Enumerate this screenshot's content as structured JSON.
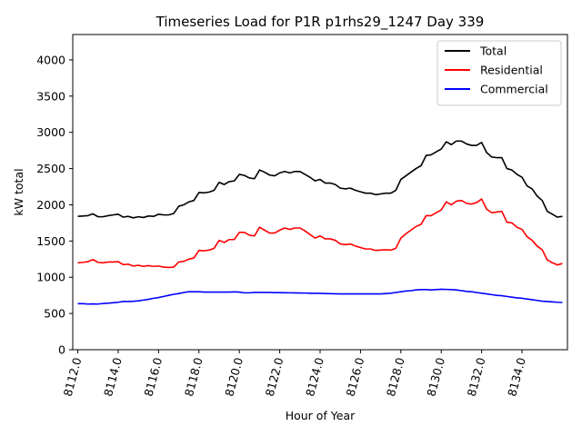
{
  "chart_data": {
    "type": "line",
    "title": "Timeseries Load for P1R p1rhs29_1247  Day 339",
    "xlabel": "Hour of Year",
    "ylabel": "kW total",
    "xlim": [
      8111.75,
      8136.25
    ],
    "ylim": [
      0,
      4350
    ],
    "x_ticks": [
      8112,
      8114,
      8116,
      8118,
      8120,
      8122,
      8124,
      8126,
      8128,
      8130,
      8132,
      8134
    ],
    "x_tick_labels": [
      "8112.0",
      "8114.0",
      "8116.0",
      "8118.0",
      "8120.0",
      "8122.0",
      "8124.0",
      "8126.0",
      "8128.0",
      "8130.0",
      "8132.0",
      "8134.0"
    ],
    "y_ticks": [
      0,
      500,
      1000,
      1500,
      2000,
      2500,
      3000,
      3500,
      4000
    ],
    "y_tick_labels": [
      "0",
      "500",
      "1000",
      "1500",
      "2000",
      "2500",
      "3000",
      "3500",
      "4000"
    ],
    "legend_position": "top-right",
    "x_start": 8112,
    "x_step": 0.25,
    "series": [
      {
        "name": "Total",
        "color": "#000000",
        "values": [
          1840,
          1845,
          1850,
          1875,
          1835,
          1835,
          1850,
          1860,
          1870,
          1830,
          1840,
          1820,
          1835,
          1825,
          1845,
          1840,
          1870,
          1860,
          1860,
          1880,
          1980,
          2000,
          2040,
          2060,
          2170,
          2165,
          2175,
          2200,
          2310,
          2280,
          2320,
          2330,
          2420,
          2405,
          2370,
          2360,
          2480,
          2450,
          2410,
          2400,
          2440,
          2460,
          2440,
          2460,
          2460,
          2420,
          2380,
          2330,
          2350,
          2300,
          2300,
          2280,
          2230,
          2220,
          2230,
          2200,
          2180,
          2160,
          2160,
          2140,
          2150,
          2160,
          2160,
          2200,
          2350,
          2400,
          2450,
          2500,
          2540,
          2680,
          2690,
          2730,
          2770,
          2870,
          2830,
          2880,
          2880,
          2840,
          2820,
          2820,
          2860,
          2720,
          2660,
          2650,
          2650,
          2500,
          2480,
          2420,
          2380,
          2260,
          2220,
          2120,
          2060,
          1910,
          1870,
          1830,
          1840
        ]
      },
      {
        "name": "Residential",
        "color": "#ff0000",
        "values": [
          1200,
          1205,
          1215,
          1245,
          1205,
          1200,
          1210,
          1210,
          1215,
          1175,
          1180,
          1155,
          1165,
          1150,
          1160,
          1150,
          1155,
          1140,
          1135,
          1140,
          1210,
          1220,
          1250,
          1265,
          1370,
          1365,
          1375,
          1400,
          1510,
          1480,
          1520,
          1520,
          1620,
          1620,
          1580,
          1570,
          1690,
          1650,
          1610,
          1610,
          1650,
          1680,
          1660,
          1680,
          1680,
          1640,
          1590,
          1540,
          1570,
          1530,
          1530,
          1510,
          1460,
          1450,
          1460,
          1430,
          1410,
          1390,
          1390,
          1370,
          1375,
          1380,
          1375,
          1400,
          1540,
          1600,
          1650,
          1700,
          1730,
          1850,
          1850,
          1890,
          1930,
          2040,
          2000,
          2050,
          2060,
          2020,
          2010,
          2030,
          2080,
          1940,
          1890,
          1900,
          1910,
          1760,
          1750,
          1690,
          1660,
          1560,
          1510,
          1430,
          1380,
          1240,
          1200,
          1170,
          1190
        ]
      },
      {
        "name": "Commercial",
        "color": "#0000ff",
        "values": [
          635,
          635,
          630,
          632,
          630,
          638,
          642,
          648,
          655,
          665,
          665,
          668,
          675,
          685,
          695,
          710,
          720,
          735,
          750,
          765,
          775,
          790,
          800,
          800,
          800,
          795,
          795,
          795,
          795,
          795,
          795,
          798,
          795,
          785,
          785,
          790,
          790,
          790,
          790,
          788,
          787,
          786,
          785,
          784,
          783,
          782,
          780,
          778,
          778,
          775,
          773,
          772,
          770,
          770,
          770,
          770,
          770,
          770,
          770,
          770,
          770,
          775,
          780,
          790,
          800,
          810,
          815,
          825,
          830,
          830,
          825,
          830,
          835,
          832,
          830,
          825,
          815,
          805,
          800,
          790,
          780,
          770,
          760,
          750,
          745,
          735,
          725,
          715,
          710,
          700,
          690,
          680,
          670,
          665,
          660,
          655,
          652
        ]
      }
    ]
  }
}
